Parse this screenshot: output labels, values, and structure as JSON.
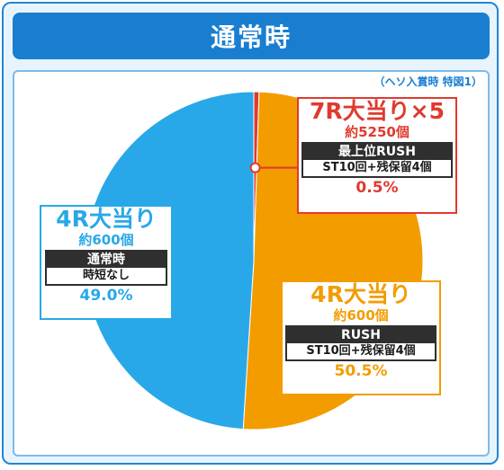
{
  "header": {
    "title": "通常時"
  },
  "note": "（ヘソ入賞時 特図1）",
  "colors": {
    "red": "#e03a2e",
    "orange": "#f39c00",
    "blue": "#28a8e8"
  },
  "chart_data": {
    "type": "pie",
    "slices": [
      {
        "label": "7R大当り×5",
        "sub": "約5250個",
        "tag_top": "最上位RUSH",
        "tag_bottom": "ST10回+残保留4個",
        "value": 0.5,
        "value_label": "0.5%",
        "color": "#e03a2e"
      },
      {
        "label": "4R大当り",
        "sub": "約600個",
        "tag_top": "RUSH",
        "tag_bottom": "ST10回+残保留4個",
        "value": 50.5,
        "value_label": "50.5%",
        "color": "#f39c00"
      },
      {
        "label": "4R大当り",
        "sub": "約600個",
        "tag_top": "通常時",
        "tag_bottom": "時短なし",
        "value": 49.0,
        "value_label": "49.0%",
        "color": "#28a8e8"
      }
    ]
  }
}
